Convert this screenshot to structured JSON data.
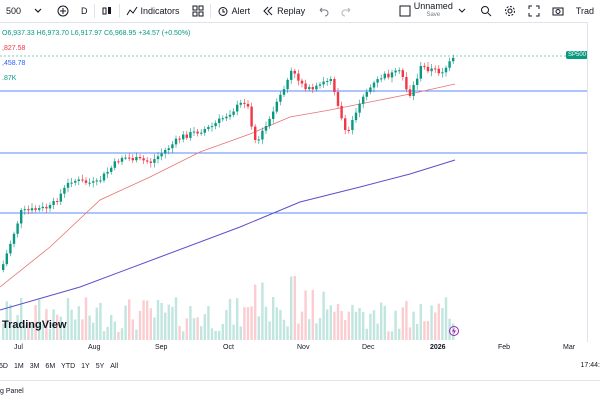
{
  "toolbar": {
    "symbol_partial": "500",
    "interval": "D",
    "indicators_label": "Indicators",
    "alert_label": "Alert",
    "replay_label": "Replay",
    "layout_name": "Unnamed",
    "layout_status": "Save",
    "trade_label": "Trad"
  },
  "legend": {
    "ohlc": "O6,937.33 H6,973.70 L6,917.97 C6,968.95 +34.57 (+0.50%)",
    "line1": ",827.58",
    "line2": ",458.78",
    "line3": ".87K"
  },
  "price_tag": "SP500",
  "brand": "TradingView",
  "time_axis": [
    "Jul",
    "Aug",
    "Sep",
    "Oct",
    "Nov",
    "Dec",
    "2026",
    "Feb",
    "Mar"
  ],
  "ranges": [
    "5D",
    "1M",
    "3M",
    "6M",
    "YTD",
    "1Y",
    "5Y",
    "All"
  ],
  "clock": "17:44:",
  "panel_label": "g Panel",
  "colors": {
    "up": "#089981",
    "down": "#f23645",
    "ma_short": "#e57373",
    "ma_long": "#5c4fc9",
    "hline": "#2962ff"
  }
}
